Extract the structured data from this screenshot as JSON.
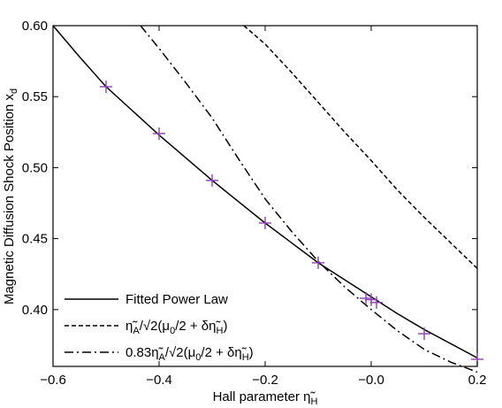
{
  "chart_data": {
    "type": "line",
    "xlabel": "Hall parameter η̃",
    "xlabel_sub": "H",
    "ylabel": "Magnetic Diffusion Shock Position x",
    "ylabel_sub": "d",
    "xlim": [
      -0.6,
      0.2
    ],
    "ylim": [
      0.36,
      0.6
    ],
    "x_ticks": [
      -0.6,
      -0.4,
      -0.2,
      -0.0,
      0.2
    ],
    "x_tick_labels": [
      "−0.6",
      "−0.4",
      "−0.2",
      "−0.0",
      "0.2"
    ],
    "y_ticks": [
      0.4,
      0.45,
      0.5,
      0.55,
      0.6
    ],
    "y_tick_labels": [
      "0.40",
      "0.45",
      "0.50",
      "0.55",
      "0.60"
    ],
    "grid": false,
    "legend_position": "bottom-left",
    "series": [
      {
        "name": "Fitted Power Law",
        "line_style": "solid",
        "color": "#000000",
        "x": [
          -0.6,
          -0.55,
          -0.5,
          -0.45,
          -0.4,
          -0.35,
          -0.3,
          -0.25,
          -0.2,
          -0.15,
          -0.1,
          -0.05,
          0.0,
          0.05,
          0.1,
          0.15,
          0.2
        ],
        "y": [
          0.6,
          0.578,
          0.557,
          0.54,
          0.523,
          0.507,
          0.491,
          0.476,
          0.461,
          0.447,
          0.433,
          0.421,
          0.409,
          0.397,
          0.386,
          0.376,
          0.366
        ]
      },
      {
        "name_parts": [
          "η̃",
          "A",
          "/√2(μ",
          "0",
          "/2 + δη̃",
          "H",
          ")"
        ],
        "line_style": "dashed",
        "color": "#000000",
        "x": [
          -0.24,
          -0.2,
          -0.15,
          -0.1,
          -0.05,
          0.0,
          0.05,
          0.1,
          0.15,
          0.2
        ],
        "y": [
          0.6,
          0.587,
          0.567,
          0.546,
          0.525,
          0.505,
          0.484,
          0.465,
          0.447,
          0.429
        ]
      },
      {
        "name_parts": [
          "0.83η̃",
          "A",
          "/√2(μ",
          "0",
          "/2 + δη̃",
          "H",
          ")"
        ],
        "line_style": "dashdot",
        "color": "#000000",
        "x": [
          -0.435,
          -0.4,
          -0.35,
          -0.3,
          -0.25,
          -0.2,
          -0.15,
          -0.1,
          -0.05,
          0.0,
          0.05,
          0.1,
          0.15,
          0.2
        ],
        "y": [
          0.6,
          0.584,
          0.56,
          0.535,
          0.506,
          0.478,
          0.455,
          0.434,
          0.416,
          0.4,
          0.385,
          0.372,
          0.363,
          0.356
        ]
      }
    ],
    "markers": {
      "style": "plus",
      "color": "#8f3fb7",
      "x": [
        -0.5,
        -0.4,
        -0.3,
        -0.2,
        -0.1,
        -0.01,
        0.0,
        0.01,
        0.1,
        0.2
      ],
      "y": [
        0.557,
        0.524,
        0.491,
        0.461,
        0.433,
        0.408,
        0.407,
        0.405,
        0.383,
        0.365
      ]
    }
  }
}
